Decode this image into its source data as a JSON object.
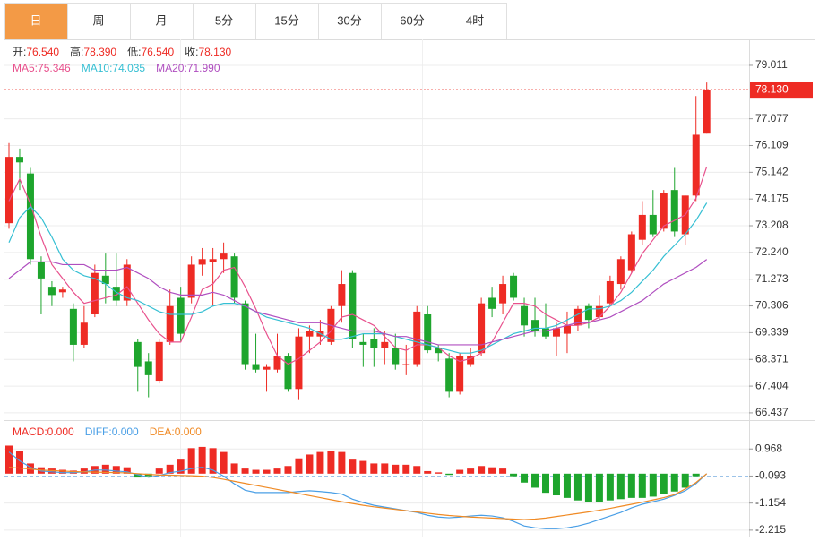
{
  "tabs": [
    "日",
    "周",
    "月",
    "5分",
    "15分",
    "30分",
    "60分",
    "4时"
  ],
  "active_tab": 0,
  "chart_data": [
    {
      "type": "candlestick",
      "up_color": "#ee2b24",
      "down_color": "#1ea52d",
      "ylim": [
        66.24,
        79.95
      ],
      "yticks": [
        79.011,
        77.077,
        76.109,
        75.142,
        74.175,
        73.208,
        {
          "value": 72.24,
          "label": "72.240"
        },
        71.273,
        70.306,
        69.339,
        68.371,
        67.404,
        66.437
      ],
      "grid": true,
      "info": [
        {
          "name": "开:",
          "value": 76.54,
          "label": "76.540"
        },
        {
          "name": "高:",
          "value": 78.39,
          "label": "78.390"
        },
        {
          "name": "低:",
          "value": 76.54,
          "label": "76.540"
        },
        {
          "name": "收:",
          "value": 78.13,
          "label": "78.130"
        }
      ],
      "last_price": {
        "value": 78.13,
        "label": "78.130"
      },
      "candles": {
        "open": [
          73.3,
          75.7,
          75.1,
          71.9,
          71.0,
          70.8,
          70.2,
          68.9,
          70.0,
          71.4,
          71.0,
          70.5,
          69.0,
          68.3,
          67.6,
          69.0,
          70.6,
          70.6,
          71.8,
          71.9,
          72.0,
          72.1,
          70.4,
          68.2,
          68.0,
          68.0,
          68.5,
          67.3,
          69.2,
          69.2,
          69.0,
          70.3,
          71.5,
          69.0,
          69.1,
          68.8,
          68.8,
          68.2,
          68.2,
          70.0,
          68.8,
          68.4,
          67.2,
          68.2,
          68.6,
          70.6,
          70.4,
          71.4,
          70.3,
          69.8,
          69.5,
          69.2,
          69.3,
          69.6,
          70.3,
          69.9,
          70.4,
          71.1,
          71.6,
          72.7,
          73.6,
          73.1,
          74.5,
          72.9,
          74.3,
          76.54
        ],
        "high": [
          76.2,
          76.0,
          75.3,
          72.1,
          71.2,
          71.0,
          70.4,
          70.3,
          71.8,
          72.2,
          72.2,
          72.0,
          69.1,
          68.6,
          69.1,
          70.9,
          71.0,
          72.1,
          72.4,
          72.4,
          72.6,
          72.2,
          70.5,
          69.3,
          68.2,
          69.3,
          68.6,
          69.5,
          69.6,
          69.8,
          70.3,
          71.6,
          71.6,
          69.3,
          69.5,
          69.4,
          69.3,
          68.9,
          70.3,
          70.3,
          68.9,
          68.6,
          68.6,
          68.8,
          70.6,
          71.0,
          71.4,
          71.5,
          70.6,
          70.6,
          70.4,
          69.7,
          70.1,
          70.3,
          70.4,
          70.7,
          71.4,
          72.1,
          73.0,
          74.1,
          74.5,
          74.5,
          75.3,
          74.3,
          77.9,
          78.39
        ],
        "low": [
          73.1,
          74.5,
          71.8,
          70.0,
          70.3,
          70.6,
          68.3,
          68.8,
          69.9,
          70.4,
          70.3,
          70.3,
          67.2,
          67.0,
          67.5,
          68.9,
          69.0,
          70.4,
          71.4,
          70.3,
          71.5,
          70.4,
          68.0,
          67.9,
          67.2,
          67.9,
          67.2,
          66.9,
          68.6,
          68.9,
          68.9,
          69.7,
          68.8,
          68.1,
          68.1,
          68.2,
          68.0,
          67.8,
          68.1,
          68.6,
          68.3,
          67.0,
          67.1,
          68.1,
          68.5,
          69.9,
          70.0,
          70.5,
          69.2,
          69.2,
          69.1,
          68.5,
          68.6,
          69.4,
          69.5,
          69.8,
          70.3,
          70.9,
          71.5,
          72.5,
          72.8,
          73.0,
          72.8,
          72.5,
          74.1,
          76.54
        ],
        "close": [
          75.7,
          75.5,
          72.0,
          71.3,
          70.7,
          70.9,
          68.9,
          69.7,
          71.5,
          71.1,
          70.5,
          71.8,
          68.1,
          67.8,
          69.0,
          70.3,
          69.3,
          71.8,
          72.0,
          72.0,
          72.2,
          70.6,
          68.2,
          68.0,
          68.1,
          68.5,
          67.3,
          69.2,
          69.4,
          69.4,
          70.2,
          71.1,
          69.1,
          68.9,
          68.8,
          69.0,
          68.2,
          68.2,
          70.1,
          68.7,
          68.6,
          67.2,
          68.5,
          68.5,
          70.4,
          70.2,
          71.1,
          70.6,
          69.6,
          69.4,
          69.2,
          69.5,
          69.6,
          70.2,
          69.8,
          70.3,
          71.2,
          72.0,
          72.9,
          73.6,
          72.9,
          74.4,
          73.0,
          74.3,
          76.5,
          78.13
        ]
      },
      "series": [
        {
          "name": "MA5:",
          "color": "#e8508c",
          "current": {
            "value": 75.346,
            "label": "75.346"
          },
          "values": [
            74.1,
            74.9,
            74.0,
            72.8,
            71.8,
            71.3,
            70.8,
            70.4,
            70.5,
            70.6,
            70.7,
            71.0,
            70.4,
            69.8,
            69.3,
            69.0,
            69.0,
            69.9,
            70.9,
            71.1,
            71.6,
            71.7,
            71.0,
            70.2,
            69.3,
            68.5,
            68.2,
            68.4,
            68.7,
            69.0,
            69.4,
            69.9,
            70.0,
            69.8,
            69.6,
            69.2,
            68.8,
            68.7,
            68.9,
            68.9,
            68.8,
            68.5,
            68.3,
            68.4,
            68.6,
            69.0,
            69.7,
            70.4,
            70.4,
            70.3,
            70.0,
            69.8,
            69.6,
            69.6,
            69.7,
            69.9,
            70.3,
            70.8,
            71.5,
            72.2,
            72.7,
            73.2,
            73.4,
            73.6,
            74.2,
            75.346
          ]
        },
        {
          "name": "MA10:",
          "color": "#35bfd3",
          "current": {
            "value": 74.035,
            "label": "74.035"
          },
          "values": [
            72.6,
            73.5,
            73.9,
            73.5,
            72.8,
            72.0,
            71.6,
            71.4,
            71.3,
            71.1,
            70.8,
            70.6,
            70.5,
            70.3,
            70.1,
            70.0,
            70.0,
            70.0,
            70.1,
            70.3,
            70.4,
            70.4,
            70.3,
            70.1,
            69.9,
            69.8,
            69.7,
            69.6,
            69.5,
            69.3,
            69.1,
            69.1,
            69.2,
            69.3,
            69.3,
            69.3,
            69.2,
            69.1,
            69.0,
            68.9,
            68.8,
            68.7,
            68.6,
            68.6,
            68.7,
            68.9,
            69.1,
            69.3,
            69.4,
            69.5,
            69.5,
            69.6,
            69.8,
            70.0,
            70.2,
            70.2,
            70.3,
            70.5,
            70.8,
            71.2,
            71.6,
            72.1,
            72.5,
            72.9,
            73.4,
            74.035
          ]
        },
        {
          "name": "MA20:",
          "color": "#b04fc0",
          "current": {
            "value": 71.99,
            "label": "71.990"
          },
          "values": [
            71.3,
            71.6,
            71.9,
            71.9,
            71.9,
            71.8,
            71.8,
            71.8,
            71.6,
            71.6,
            71.6,
            71.7,
            71.5,
            71.3,
            71.0,
            70.8,
            70.7,
            70.7,
            70.7,
            70.8,
            70.7,
            70.5,
            70.3,
            70.1,
            70.0,
            69.9,
            69.8,
            69.7,
            69.7,
            69.7,
            69.6,
            69.5,
            69.4,
            69.4,
            69.4,
            69.3,
            69.2,
            69.2,
            69.1,
            69.0,
            68.9,
            68.9,
            68.9,
            68.9,
            68.9,
            69.0,
            69.1,
            69.2,
            69.3,
            69.4,
            69.4,
            69.5,
            69.6,
            69.7,
            69.7,
            69.8,
            69.9,
            70.1,
            70.3,
            70.5,
            70.8,
            71.1,
            71.3,
            71.5,
            71.7,
            71.99
          ]
        }
      ]
    },
    {
      "type": "macd",
      "ylim": [
        -2.5,
        2.03
      ],
      "yticks": [
        0.968,
        -0.093,
        -1.154,
        -2.215
      ],
      "grid": true,
      "up_color": "#ee2b24",
      "down_color": "#1ea52d",
      "histogram": {
        "name": "MACD:",
        "color": "#ee2b24",
        "current": {
          "value": 0,
          "label": "0.000"
        },
        "values": [
          1.1,
          0.9,
          0.4,
          0.25,
          0.2,
          0.15,
          0.12,
          0.2,
          0.3,
          0.35,
          0.3,
          0.25,
          -0.15,
          -0.1,
          0.2,
          0.35,
          0.55,
          1.0,
          1.05,
          1.0,
          0.85,
          0.4,
          0.2,
          0.15,
          0.15,
          0.2,
          0.3,
          0.6,
          0.75,
          0.85,
          0.9,
          0.85,
          0.55,
          0.5,
          0.4,
          0.4,
          0.35,
          0.35,
          0.3,
          0.1,
          0.05,
          -0.05,
          0.15,
          0.2,
          0.3,
          0.25,
          0.2,
          -0.1,
          -0.35,
          -0.55,
          -0.75,
          -0.85,
          -0.95,
          -1.05,
          -1.1,
          -1.1,
          -1.05,
          -1.0,
          -0.95,
          -0.95,
          -0.9,
          -0.8,
          -0.7,
          -0.55,
          -0.1,
          0.0
        ]
      },
      "series": [
        {
          "name": "DIFF:",
          "color": "#4a9fe6",
          "current": {
            "value": 0,
            "label": "0.000"
          },
          "values": [
            0.85,
            0.5,
            0.25,
            0.1,
            0.07,
            0.04,
            0.04,
            0.07,
            0.14,
            0.14,
            0.1,
            0.07,
            -0.04,
            -0.14,
            -0.07,
            0.04,
            0.1,
            0.2,
            0.25,
            0.14,
            -0.1,
            -0.4,
            -0.65,
            -0.74,
            -0.74,
            -0.74,
            -0.74,
            -0.7,
            -0.67,
            -0.7,
            -0.74,
            -0.8,
            -1.0,
            -1.13,
            -1.24,
            -1.31,
            -1.38,
            -1.45,
            -1.52,
            -1.63,
            -1.7,
            -1.73,
            -1.7,
            -1.66,
            -1.63,
            -1.66,
            -1.73,
            -1.87,
            -2.05,
            -2.12,
            -2.16,
            -2.16,
            -2.12,
            -2.05,
            -1.94,
            -1.8,
            -1.66,
            -1.52,
            -1.34,
            -1.2,
            -1.1,
            -1.0,
            -0.85,
            -0.67,
            -0.39,
            0
          ]
        },
        {
          "name": "DEA:",
          "color": "#f08a24",
          "current": {
            "value": 0,
            "label": "0.000"
          },
          "values": [
            0.25,
            0.22,
            0.18,
            0.14,
            0.12,
            0.1,
            0.08,
            0.07,
            0.06,
            0.05,
            0.04,
            0.03,
            0,
            -0.03,
            -0.05,
            -0.06,
            -0.07,
            -0.08,
            -0.1,
            -0.15,
            -0.22,
            -0.3,
            -0.38,
            -0.46,
            -0.54,
            -0.62,
            -0.7,
            -0.78,
            -0.86,
            -0.94,
            -1.02,
            -1.1,
            -1.17,
            -1.24,
            -1.3,
            -1.35,
            -1.4,
            -1.45,
            -1.5,
            -1.55,
            -1.6,
            -1.64,
            -1.67,
            -1.7,
            -1.72,
            -1.74,
            -1.76,
            -1.78,
            -1.8,
            -1.78,
            -1.74,
            -1.68,
            -1.62,
            -1.56,
            -1.5,
            -1.43,
            -1.36,
            -1.28,
            -1.2,
            -1.12,
            -1.03,
            -0.94,
            -0.82,
            -0.6,
            -0.35,
            0
          ]
        }
      ]
    }
  ]
}
